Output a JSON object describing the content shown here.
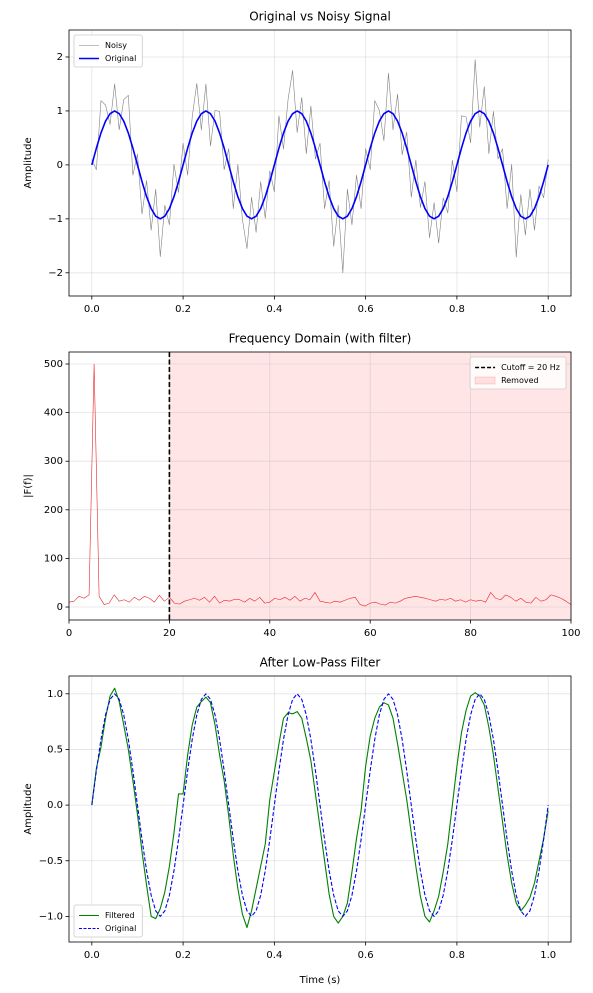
{
  "chart_data": [
    {
      "type": "line",
      "title": "Original vs Noisy Signal",
      "ylabel": "Amplitude",
      "x": [
        0,
        0.01,
        0.02,
        0.03,
        0.04,
        0.05,
        0.06,
        0.07,
        0.08,
        0.09,
        0.1,
        0.11,
        0.12,
        0.13,
        0.14,
        0.15,
        0.16,
        0.17,
        0.18,
        0.19,
        0.2,
        0.21,
        0.22,
        0.23,
        0.24,
        0.25,
        0.26,
        0.27,
        0.28,
        0.29,
        0.3,
        0.31,
        0.32,
        0.33,
        0.34,
        0.35,
        0.36,
        0.37,
        0.38,
        0.39,
        0.4,
        0.41,
        0.42,
        0.43,
        0.44,
        0.45,
        0.46,
        0.47,
        0.48,
        0.49,
        0.5,
        0.51,
        0.52,
        0.53,
        0.54,
        0.55,
        0.56,
        0.57,
        0.58,
        0.59,
        0.6,
        0.61,
        0.62,
        0.63,
        0.64,
        0.65,
        0.66,
        0.67,
        0.68,
        0.69,
        0.7,
        0.71,
        0.72,
        0.73,
        0.74,
        0.75,
        0.76,
        0.77,
        0.78,
        0.79,
        0.8,
        0.81,
        0.82,
        0.83,
        0.84,
        0.85,
        0.86,
        0.87,
        0.88,
        0.89,
        0.9,
        0.91,
        0.92,
        0.93,
        0.94,
        0.95,
        0.96,
        0.97,
        0.98,
        0.99,
        1
      ],
      "series": [
        {
          "name": "Noisy",
          "color": "#808080",
          "width": 0.6,
          "linestyle": "solid",
          "values": [
            0.1,
            -0.09,
            1.19,
            1.11,
            0.75,
            1.5,
            0.65,
            1.21,
            1.29,
            -0.19,
            0.2,
            -0.91,
            -0.29,
            -1.21,
            -0.45,
            -1.7,
            -0.75,
            -1.11,
            0.01,
            -0.51,
            0.4,
            -0.19,
            0.89,
            1.51,
            0.65,
            1.5,
            0.35,
            1.01,
            0.99,
            -0.09,
            0.3,
            -0.81,
            0.01,
            -1.01,
            -1.55,
            -0.6,
            -1.25,
            -0.31,
            -0.99,
            -0.11,
            -0.5,
            0.91,
            0.29,
            1.21,
            1.75,
            0.6,
            1.25,
            0.21,
            1.09,
            0.11,
            0.4,
            -0.81,
            -0.29,
            -1.51,
            -0.75,
            -2.0,
            -0.45,
            -1.11,
            -0.19,
            -0.81,
            0.3,
            -0.09,
            1.19,
            1.01,
            0.45,
            1.7,
            0.65,
            1.31,
            0.19,
            0.61,
            -0.6,
            0.09,
            -0.79,
            -0.31,
            -1.35,
            -0.7,
            -1.45,
            -0.61,
            -0.89,
            0.09,
            -0.5,
            0.91,
            0.89,
            0.41,
            1.95,
            0.7,
            1.45,
            0.21,
            0.99,
            0.11,
            0.3,
            -0.81,
            0.01,
            -1.71,
            -0.55,
            -1.3,
            -0.45,
            -1.21,
            -0.39,
            -0.61,
            0.1
          ]
        },
        {
          "name": "Original",
          "color": "#0000ff",
          "width": 1.6,
          "linestyle": "solid",
          "values": [
            0,
            0.31,
            0.59,
            0.81,
            0.95,
            1,
            0.95,
            0.81,
            0.59,
            0.31,
            0,
            -0.31,
            -0.59,
            -0.81,
            -0.95,
            -1,
            -0.95,
            -0.81,
            -0.59,
            -0.31,
            0,
            0.31,
            0.59,
            0.81,
            0.95,
            1,
            0.95,
            0.81,
            0.59,
            0.31,
            0,
            -0.31,
            -0.59,
            -0.81,
            -0.95,
            -1,
            -0.95,
            -0.81,
            -0.59,
            -0.31,
            0,
            0.31,
            0.59,
            0.81,
            0.95,
            1,
            0.95,
            0.81,
            0.59,
            0.31,
            0,
            -0.31,
            -0.59,
            -0.81,
            -0.95,
            -1,
            -0.95,
            -0.81,
            -0.59,
            -0.31,
            0,
            0.31,
            0.59,
            0.81,
            0.95,
            1,
            0.95,
            0.81,
            0.59,
            0.31,
            0,
            -0.31,
            -0.59,
            -0.81,
            -0.95,
            -1,
            -0.95,
            -0.81,
            -0.59,
            -0.31,
            0,
            0.31,
            0.59,
            0.81,
            0.95,
            1,
            0.95,
            0.81,
            0.59,
            0.31,
            0,
            -0.31,
            -0.59,
            -0.81,
            -0.95,
            -1,
            -0.95,
            -0.81,
            -0.59,
            -0.31,
            0
          ]
        }
      ],
      "xlim": [
        -0.05,
        1.05
      ],
      "xticks": [
        {
          "value": 0,
          "label": "0.0"
        },
        {
          "value": 0.2,
          "label": "0.2"
        },
        {
          "value": 0.4,
          "label": "0.4"
        },
        {
          "value": 0.6,
          "label": "0.6"
        },
        {
          "value": 0.8,
          "label": "0.8"
        },
        {
          "value": 1,
          "label": "1.0"
        }
      ],
      "ylim": [
        -2.43,
        2.5
      ],
      "yticks": [
        {
          "value": -2,
          "label": "−2"
        },
        {
          "value": -1,
          "label": "−1"
        },
        0,
        1,
        2
      ],
      "grid": true,
      "legend": "upper left"
    },
    {
      "type": "line",
      "title": "Frequency Domain (with filter)",
      "ylabel": "|F(f)|",
      "x": [
        0,
        1,
        2,
        3,
        4,
        5,
        6,
        7,
        8,
        9,
        10,
        11,
        12,
        13,
        14,
        15,
        16,
        17,
        18,
        19,
        20,
        21,
        22,
        23,
        24,
        25,
        26,
        27,
        28,
        29,
        30,
        31,
        32,
        33,
        34,
        35,
        36,
        37,
        38,
        39,
        40,
        41,
        42,
        43,
        44,
        45,
        46,
        47,
        48,
        49,
        50,
        51,
        52,
        53,
        54,
        55,
        56,
        57,
        58,
        59,
        60,
        61,
        62,
        63,
        64,
        65,
        66,
        67,
        68,
        69,
        70,
        71,
        72,
        73,
        74,
        75,
        76,
        77,
        78,
        79,
        80,
        81,
        82,
        83,
        84,
        85,
        86,
        87,
        88,
        89,
        90,
        91,
        92,
        93,
        94,
        95,
        96,
        97,
        98,
        99,
        100
      ],
      "series": [
        {
          "color": "#e8262a",
          "width": 0.6,
          "linestyle": "solid",
          "values": [
            10,
            12,
            22,
            18,
            25,
            500,
            22,
            5,
            8,
            25,
            12,
            15,
            10,
            20,
            14,
            22,
            18,
            10,
            24,
            12,
            20,
            8,
            6,
            12,
            15,
            18,
            14,
            20,
            10,
            22,
            8,
            14,
            12,
            16,
            15,
            10,
            18,
            12,
            20,
            8,
            10,
            18,
            15,
            20,
            14,
            22,
            12,
            18,
            15,
            30,
            12,
            10,
            8,
            12,
            10,
            14,
            18,
            20,
            5,
            2,
            8,
            10,
            6,
            4,
            10,
            8,
            12,
            18,
            20,
            22,
            20,
            18,
            15,
            12,
            16,
            14,
            18,
            12,
            15,
            10,
            15,
            12,
            14,
            10,
            30,
            18,
            15,
            25,
            20,
            12,
            18,
            10,
            8,
            20,
            12,
            15,
            25,
            22,
            18,
            12,
            5
          ]
        }
      ],
      "cutoff": 20,
      "cutoff_label": "Cutoff = 20 Hz",
      "cutoff_color": "#000000",
      "shade_label": "Removed",
      "shade_color": "#ff0000",
      "xlim": [
        0,
        100
      ],
      "xticks": [
        0,
        20,
        40,
        60,
        80,
        100
      ],
      "ylim": [
        -26.7,
        524.7
      ],
      "yticks": [
        0,
        100,
        200,
        300,
        400,
        500
      ],
      "grid": true,
      "legend": "upper right"
    },
    {
      "type": "line",
      "title": "After Low-Pass Filter",
      "ylabel": "Amplitude",
      "xlabel": "Time (s)",
      "x": [
        0,
        0.01,
        0.02,
        0.03,
        0.04,
        0.05,
        0.06,
        0.07,
        0.08,
        0.09,
        0.1,
        0.11,
        0.12,
        0.13,
        0.14,
        0.15,
        0.16,
        0.17,
        0.18,
        0.19,
        0.2,
        0.21,
        0.22,
        0.23,
        0.24,
        0.25,
        0.26,
        0.27,
        0.28,
        0.29,
        0.3,
        0.31,
        0.32,
        0.33,
        0.34,
        0.35,
        0.36,
        0.37,
        0.38,
        0.39,
        0.4,
        0.41,
        0.42,
        0.43,
        0.44,
        0.45,
        0.46,
        0.47,
        0.48,
        0.49,
        0.5,
        0.51,
        0.52,
        0.53,
        0.54,
        0.55,
        0.56,
        0.57,
        0.58,
        0.59,
        0.6,
        0.61,
        0.62,
        0.63,
        0.64,
        0.65,
        0.66,
        0.67,
        0.68,
        0.69,
        0.7,
        0.71,
        0.72,
        0.73,
        0.74,
        0.75,
        0.76,
        0.77,
        0.78,
        0.79,
        0.8,
        0.81,
        0.82,
        0.83,
        0.84,
        0.85,
        0.86,
        0.87,
        0.88,
        0.89,
        0.9,
        0.91,
        0.92,
        0.93,
        0.94,
        0.95,
        0.96,
        0.97,
        0.98,
        0.99,
        1
      ],
      "series": [
        {
          "name": "Filtered",
          "color": "#008000",
          "width": 1.1,
          "linestyle": "solid",
          "values": [
            0,
            0.33,
            0.52,
            0.78,
            0.98,
            1.05,
            0.93,
            0.72,
            0.5,
            0.22,
            -0.08,
            -0.42,
            -0.72,
            -1.0,
            -1.02,
            -0.93,
            -0.78,
            -0.55,
            -0.25,
            0.1,
            0.1,
            0.45,
            0.72,
            0.88,
            0.93,
            0.97,
            0.92,
            0.72,
            0.45,
            0.22,
            -0.1,
            -0.45,
            -0.75,
            -0.98,
            -1.1,
            -0.95,
            -0.75,
            -0.55,
            -0.35,
            0.05,
            0.3,
            0.55,
            0.78,
            0.83,
            0.82,
            0.84,
            0.78,
            0.6,
            0.4,
            0.1,
            -0.2,
            -0.5,
            -0.8,
            -1.0,
            -1.06,
            -1.0,
            -0.88,
            -0.6,
            -0.3,
            -0.05,
            0.35,
            0.62,
            0.78,
            0.88,
            0.92,
            0.9,
            0.78,
            0.55,
            0.3,
            0.05,
            -0.25,
            -0.55,
            -0.82,
            -1.0,
            -1.05,
            -0.95,
            -0.82,
            -0.6,
            -0.35,
            0,
            0.35,
            0.65,
            0.85,
            0.98,
            1.01,
            0.98,
            0.9,
            0.7,
            0.45,
            0.15,
            -0.15,
            -0.45,
            -0.7,
            -0.88,
            -0.95,
            -0.9,
            -0.83,
            -0.7,
            -0.5,
            -0.3,
            -0.05
          ]
        },
        {
          "name": "Original",
          "color": "#0000ff",
          "width": 1.1,
          "linestyle": "dashed",
          "values": [
            0,
            0.31,
            0.59,
            0.81,
            0.95,
            1,
            0.95,
            0.81,
            0.59,
            0.31,
            0,
            -0.31,
            -0.59,
            -0.81,
            -0.95,
            -1,
            -0.95,
            -0.81,
            -0.59,
            -0.31,
            0,
            0.31,
            0.59,
            0.81,
            0.95,
            1,
            0.95,
            0.81,
            0.59,
            0.31,
            0,
            -0.31,
            -0.59,
            -0.81,
            -0.95,
            -1,
            -0.95,
            -0.81,
            -0.59,
            -0.31,
            0,
            0.31,
            0.59,
            0.81,
            0.95,
            1,
            0.95,
            0.81,
            0.59,
            0.31,
            0,
            -0.31,
            -0.59,
            -0.81,
            -0.95,
            -1,
            -0.95,
            -0.81,
            -0.59,
            -0.31,
            0,
            0.31,
            0.59,
            0.81,
            0.95,
            1,
            0.95,
            0.81,
            0.59,
            0.31,
            0,
            -0.31,
            -0.59,
            -0.81,
            -0.95,
            -1,
            -0.95,
            -0.81,
            -0.59,
            -0.31,
            0,
            0.31,
            0.59,
            0.81,
            0.95,
            1,
            0.95,
            0.81,
            0.59,
            0.31,
            0,
            -0.31,
            -0.59,
            -0.81,
            -0.95,
            -1,
            -0.95,
            -0.81,
            -0.59,
            -0.31,
            0
          ]
        }
      ],
      "xlim": [
        -0.05,
        1.05
      ],
      "xticks": [
        {
          "value": 0,
          "label": "0.0"
        },
        {
          "value": 0.2,
          "label": "0.2"
        },
        {
          "value": 0.4,
          "label": "0.4"
        },
        {
          "value": 0.6,
          "label": "0.6"
        },
        {
          "value": 0.8,
          "label": "0.8"
        },
        {
          "value": 1,
          "label": "1.0"
        }
      ],
      "ylim": [
        -1.23,
        1.16
      ],
      "yticks": [
        {
          "value": -1,
          "label": "−1.0"
        },
        {
          "value": -0.5,
          "label": "−0.5"
        },
        {
          "value": 0,
          "label": "0.0"
        },
        {
          "value": 0.5,
          "label": "0.5"
        },
        {
          "value": 1,
          "label": "1.0"
        }
      ],
      "grid": true,
      "legend": "lower left"
    }
  ]
}
